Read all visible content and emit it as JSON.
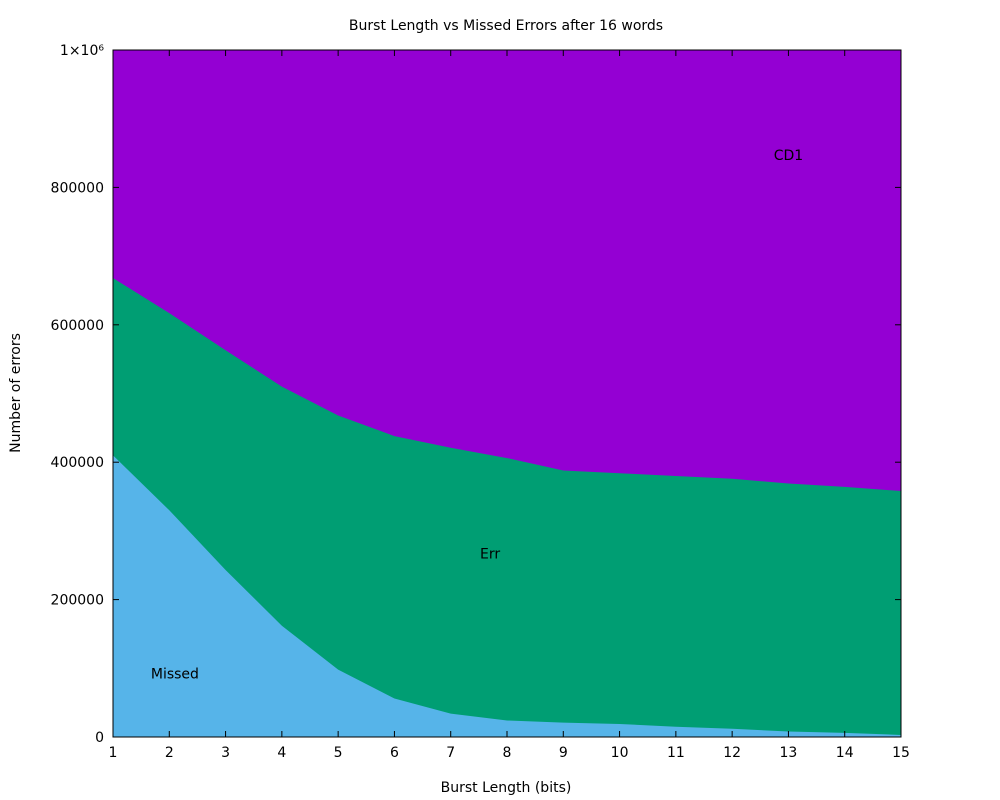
{
  "chart_data": {
    "type": "area",
    "stacked": false,
    "title": "Burst Length vs Missed Errors after 16 words",
    "xlabel": "Burst Length (bits)",
    "ylabel": "Number of errors",
    "xlim": [
      1,
      15
    ],
    "ylim": [
      0,
      1000000
    ],
    "x": [
      1,
      2,
      3,
      4,
      5,
      6,
      7,
      8,
      9,
      10,
      11,
      12,
      13,
      14,
      15
    ],
    "x_tick_labels": [
      "1",
      "2",
      "3",
      "4",
      "5",
      "6",
      "7",
      "8",
      "9",
      "10",
      "11",
      "12",
      "13",
      "14",
      "15"
    ],
    "y_ticks": [
      0,
      200000,
      400000,
      600000,
      800000,
      1000000
    ],
    "y_tick_labels": [
      "0",
      "200000",
      "400000",
      "600000",
      "800000",
      "1×10⁶"
    ],
    "grid": false,
    "series": [
      {
        "label": "CD1",
        "color": "#9400d3",
        "values": [
          1000000,
          1000000,
          1000000,
          1000000,
          1000000,
          1000000,
          1000000,
          1000000,
          1000000,
          1000000,
          1000000,
          1000000,
          1000000,
          1000000,
          1000000
        ]
      },
      {
        "label": "Err",
        "color": "#009e73",
        "values": [
          668000,
          617000,
          563000,
          510000,
          468000,
          438000,
          421000,
          406000,
          388000,
          384000,
          380000,
          376000,
          369000,
          364000,
          358000
        ]
      },
      {
        "label": "Missed",
        "color": "#56b4e9",
        "values": [
          410000,
          330000,
          243000,
          162000,
          98000,
          56000,
          34000,
          24000,
          21000,
          19000,
          15000,
          12000,
          8000,
          6000,
          3000
        ]
      }
    ],
    "annotations": [
      {
        "text": "CD1",
        "x": 13.0,
        "y": 840000
      },
      {
        "text": "Err",
        "x": 7.7,
        "y": 260000
      },
      {
        "text": "Missed",
        "x": 2.1,
        "y": 85000
      }
    ]
  }
}
